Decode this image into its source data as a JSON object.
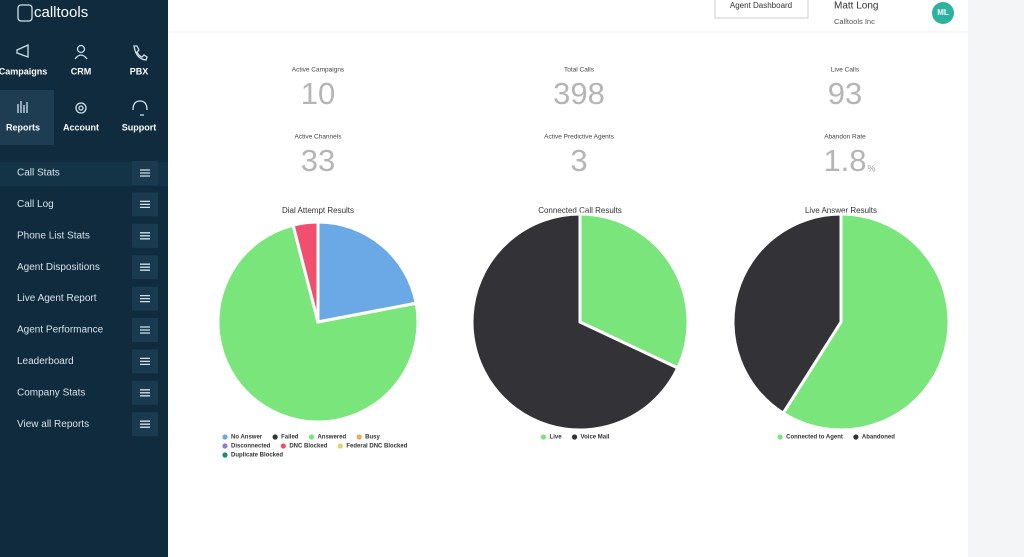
{
  "sidebar": {
    "logo": "calltools",
    "nav": [
      "Campaigns",
      "CRM",
      "PBX",
      "Reports",
      "Account",
      "Support"
    ],
    "menu": [
      "Call Stats",
      "Call Log",
      "Phone List Stats",
      "Agent Dispositions",
      "Live Agent Report",
      "Agent Performance",
      "Leaderboard",
      "Company Stats",
      "View all Reports"
    ]
  },
  "header": {
    "button": "Agent Dashboard",
    "user": "Matt Long",
    "company": "Calltools Inc",
    "initials": "ML"
  },
  "stats": [
    {
      "label": "Active Campaigns",
      "value": 10
    },
    {
      "label": "Total Calls",
      "value": 398
    },
    {
      "label": "Live Calls",
      "value": 93
    },
    {
      "label": "Active Channels",
      "value": 33
    },
    {
      "label": "Active Predictive Agents",
      "value": 3
    },
    {
      "label": "Abandon Rate",
      "value": 1.8,
      "unit": "%"
    }
  ],
  "charts": [
    {
      "type": "pie",
      "title": "Dial Attempt Results",
      "categories": [
        "No Answer",
        "Failed",
        "Answered",
        "Busy",
        "Disconnected",
        "DNC Blocked",
        "Federal DNC Blocked",
        "Duplicate Blocked"
      ],
      "values": [
        22,
        0,
        74,
        0,
        0,
        4,
        0,
        0
      ],
      "colors": [
        "#6aa9e6",
        "#333337",
        "#79e57a",
        "#f4a460",
        "#8b7fd0",
        "#f04f6e",
        "#e8d060",
        "#1a8a7a"
      ]
    },
    {
      "type": "pie",
      "title": "Connected Call Results",
      "categories": [
        "Live",
        "Voice Mail"
      ],
      "values": [
        32,
        68
      ],
      "colors": [
        "#79e57a",
        "#333337"
      ]
    },
    {
      "type": "pie",
      "title": "Live Answer Results",
      "categories": [
        "Connected to Agent",
        "Abandoned"
      ],
      "values": [
        59,
        41
      ],
      "colors": [
        "#79e57a",
        "#333337"
      ]
    }
  ]
}
